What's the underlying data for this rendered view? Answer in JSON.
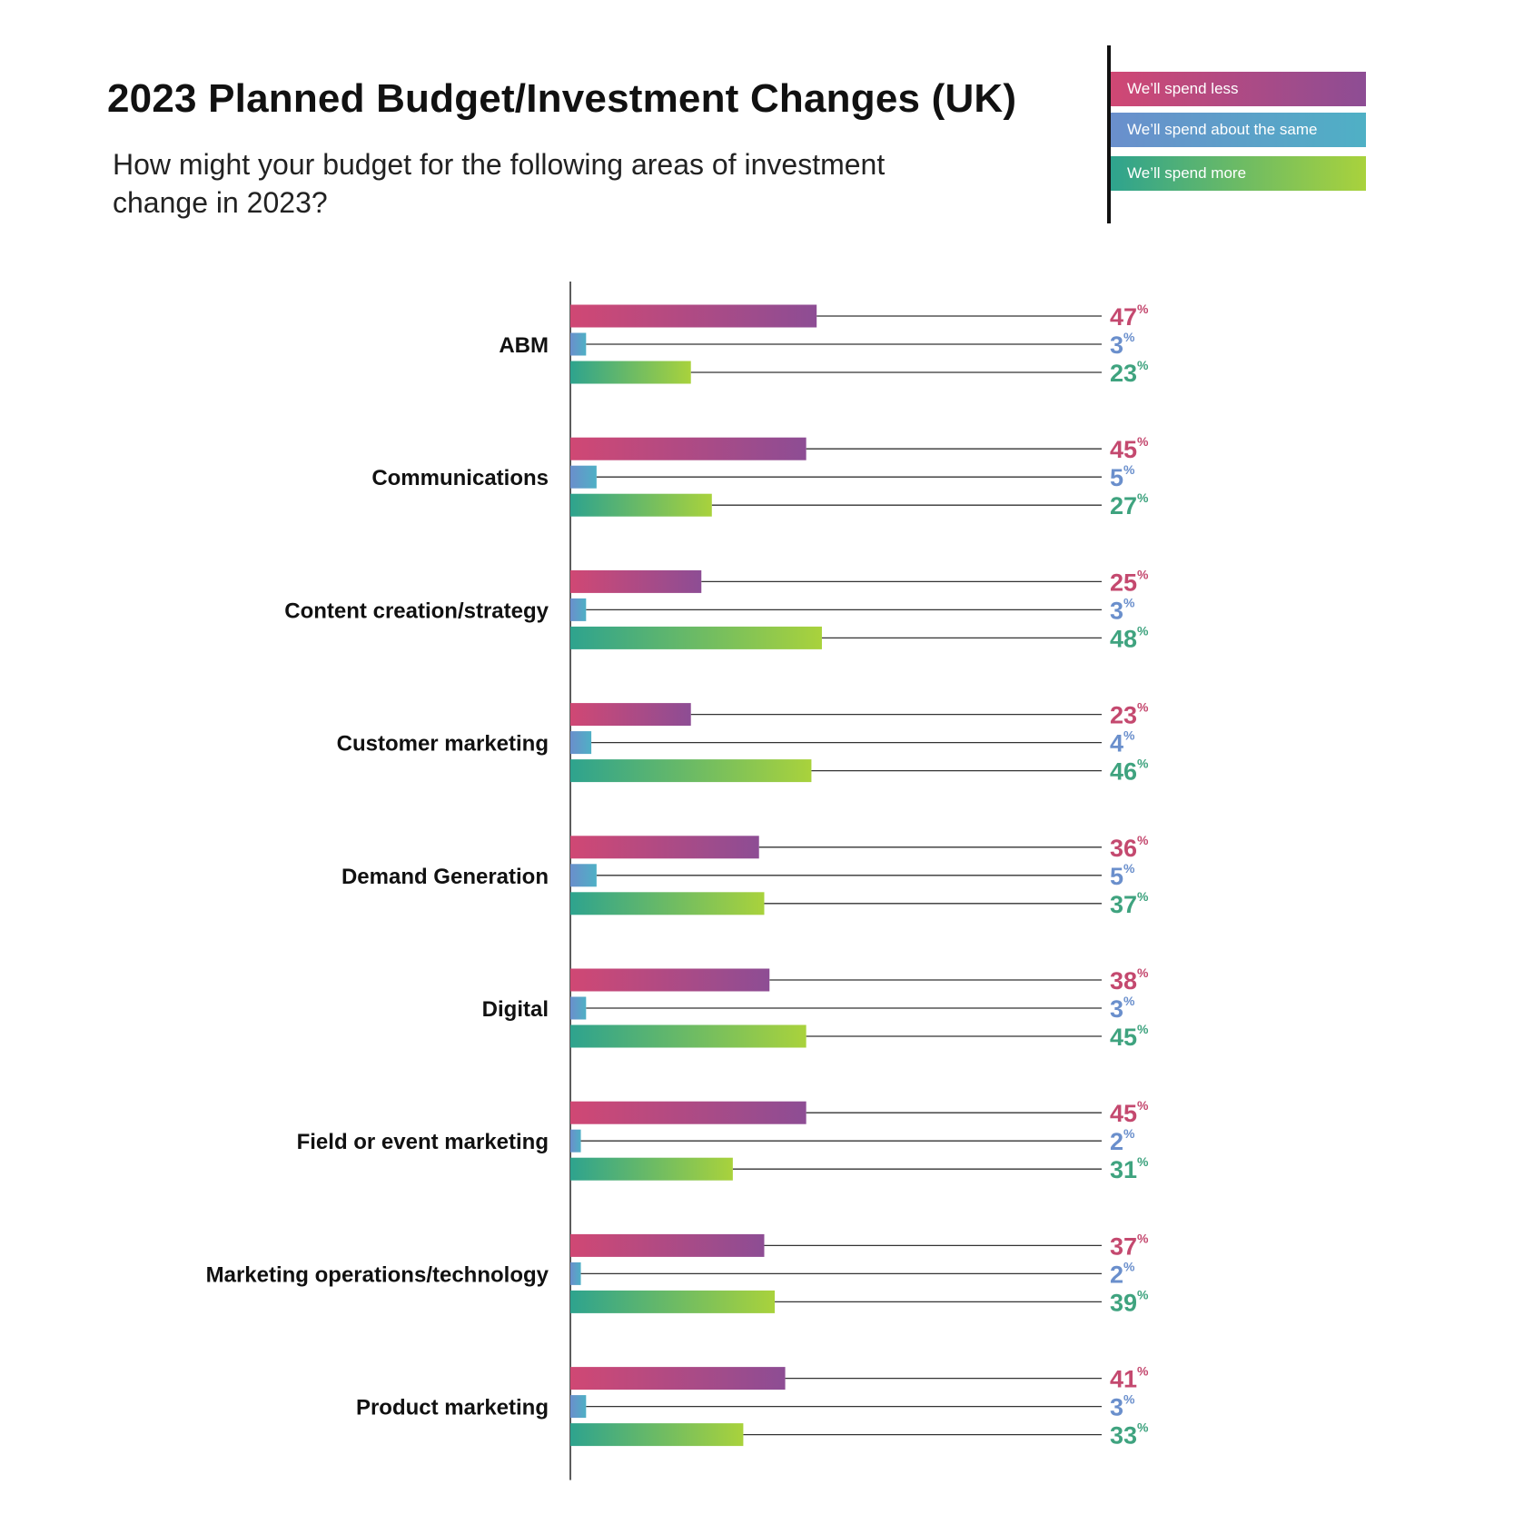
{
  "header": {
    "title": "2023 Planned Budget/Investment Changes (UK)",
    "subtitle": "How might your budget for the following areas of investment change in 2023?"
  },
  "legend": {
    "less": "We’ll spend less",
    "same": "We’ll spend about the same",
    "more": "We’ll spend more"
  },
  "colors": {
    "less_start": "#d04874",
    "less_end": "#8d4d94",
    "same_start": "#6a8fcc",
    "same_end": "#4fb0c5",
    "more_start": "#2ea38e",
    "more_end": "#a9d23c",
    "less_text": "#c4496f",
    "same_text": "#6a8fcc",
    "more_text": "#3fa37f"
  },
  "chart_data": {
    "type": "bar",
    "orientation": "horizontal",
    "title": "2023 Planned Budget/Investment Changes (UK)",
    "value_suffix": "%",
    "grid": false,
    "legend_position": "top-right",
    "xlim": [
      0,
      100
    ],
    "categories": [
      "ABM",
      "Communications",
      "Content creation/strategy",
      "Customer marketing",
      "Demand Generation",
      "Digital",
      "Field or event marketing",
      "Marketing operations/technology",
      "Product marketing"
    ],
    "series": [
      {
        "name": "We’ll spend less",
        "key": "less",
        "values": [
          47,
          45,
          25,
          23,
          36,
          38,
          45,
          37,
          41
        ]
      },
      {
        "name": "We’ll spend about the same",
        "key": "same",
        "values": [
          3,
          5,
          3,
          4,
          5,
          3,
          2,
          2,
          3
        ]
      },
      {
        "name": "We’ll spend more",
        "key": "more",
        "values": [
          23,
          27,
          48,
          46,
          37,
          45,
          31,
          39,
          33
        ]
      }
    ]
  }
}
